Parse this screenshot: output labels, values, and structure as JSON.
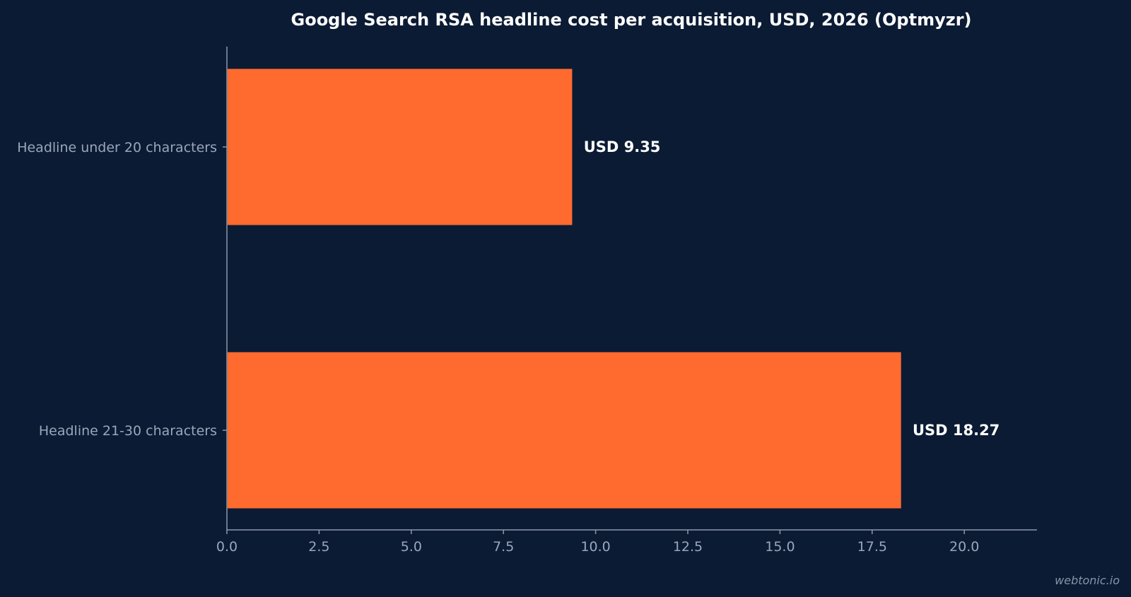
{
  "watermark": "webtonic.io",
  "chart_data": {
    "type": "bar",
    "orientation": "horizontal",
    "title": "Google Search RSA headline cost per acquisition, USD, 2026 (Optmyzr)",
    "xlabel": "",
    "ylabel": "",
    "categories": [
      "Headline under 20 characters",
      "Headline 21-30 characters"
    ],
    "values": [
      9.35,
      18.27
    ],
    "data_labels": [
      "USD 9.35",
      "USD 18.27"
    ],
    "x_ticks": [
      "0.0",
      "2.5",
      "5.0",
      "7.5",
      "10.0",
      "12.5",
      "15.0",
      "17.5",
      "20.0"
    ],
    "xlim": [
      0,
      22
    ],
    "grid": false,
    "legend": "none",
    "colors": {
      "background": "#0b1b34",
      "bar": "#ff6b2e",
      "axis": "#8c98aa",
      "text": "#ffffff",
      "muted_text": "#9aa7ba"
    }
  }
}
